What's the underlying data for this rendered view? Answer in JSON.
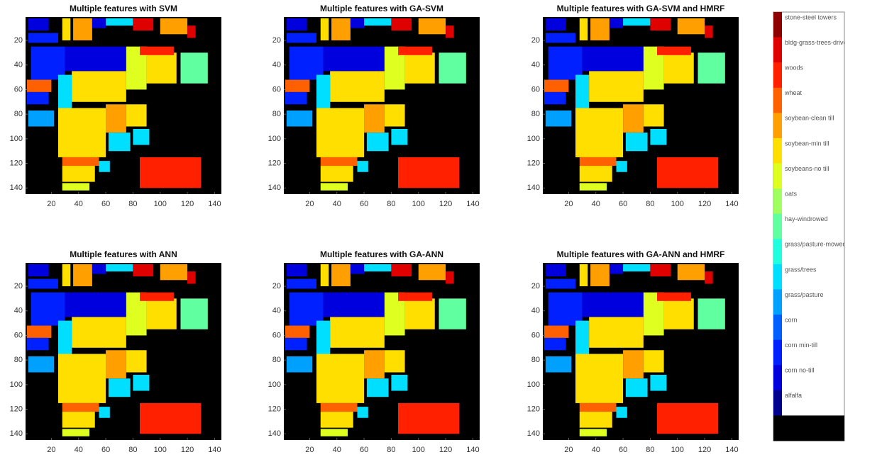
{
  "chart_data": [
    {
      "type": "image",
      "title": "Multiple features with SVM",
      "xlim": [
        1,
        145
      ],
      "ylim": [
        1,
        145
      ],
      "xticks": [
        20,
        40,
        60,
        80,
        100,
        120,
        140
      ],
      "yticks": [
        20,
        40,
        60,
        80,
        100,
        120,
        140
      ]
    },
    {
      "type": "image",
      "title": "Multiple features with GA-SVM",
      "xlim": [
        1,
        145
      ],
      "ylim": [
        1,
        145
      ],
      "xticks": [
        20,
        40,
        60,
        80,
        100,
        120,
        140
      ],
      "yticks": [
        20,
        40,
        60,
        80,
        100,
        120,
        140
      ]
    },
    {
      "type": "image",
      "title": "Multiple features with GA-SVM and HMRF",
      "xlim": [
        1,
        145
      ],
      "ylim": [
        1,
        145
      ],
      "xticks": [
        20,
        40,
        60,
        80,
        100,
        120,
        140
      ],
      "yticks": [
        20,
        40,
        60,
        80,
        100,
        120,
        140
      ]
    },
    {
      "type": "image",
      "title": "Multiple features with ANN",
      "xlim": [
        1,
        145
      ],
      "ylim": [
        1,
        145
      ],
      "xticks": [
        20,
        40,
        60,
        80,
        100,
        120,
        140
      ],
      "yticks": [
        20,
        40,
        60,
        80,
        100,
        120,
        140
      ]
    },
    {
      "type": "image",
      "title": "Multiple features with GA-ANN",
      "xlim": [
        1,
        145
      ],
      "ylim": [
        1,
        145
      ],
      "xticks": [
        20,
        40,
        60,
        80,
        100,
        120,
        140
      ],
      "yticks": [
        20,
        40,
        60,
        80,
        100,
        120,
        140
      ]
    },
    {
      "type": "image",
      "title": "Multiple features with GA-ANN and HMRF",
      "xlim": [
        1,
        145
      ],
      "ylim": [
        1,
        145
      ],
      "xticks": [
        20,
        40,
        60,
        80,
        100,
        120,
        140
      ],
      "yticks": [
        20,
        40,
        60,
        80,
        100,
        120,
        140
      ]
    }
  ],
  "colorbar": {
    "labels": [
      "stone-steel towers",
      "bldg-grass-trees-drive",
      "woods",
      "wheat",
      "soybean-clean till",
      "soybean-min till",
      "soybeans-no till",
      "oats",
      "hay-windrowed",
      "grass/pasture-mowed",
      "grass/trees",
      "grass/pasture",
      "corn",
      "corn min-till",
      "corn no-till",
      "alfalfa",
      null
    ],
    "colors": [
      "#8f0000",
      "#df0000",
      "#ff2000",
      "#ff6000",
      "#ffa000",
      "#ffdf00",
      "#dfff20",
      "#a0ff60",
      "#60ffa0",
      "#20ffdf",
      "#00dfff",
      "#00a0ff",
      "#0060ff",
      "#0020ff",
      "#0000df",
      "#00008f",
      "#000000"
    ]
  }
}
